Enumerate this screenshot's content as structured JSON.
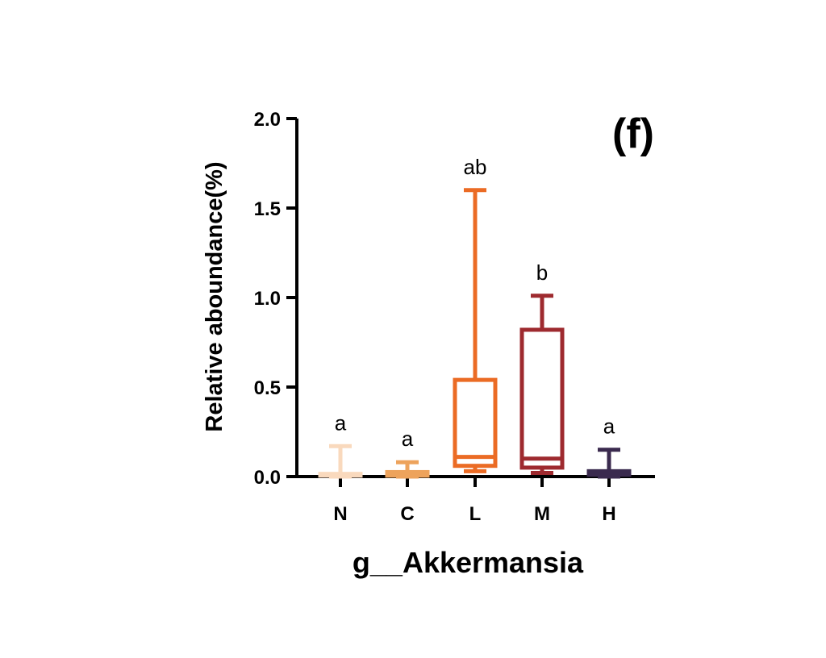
{
  "chart_data": {
    "type": "box",
    "panel_label": "(f)",
    "xlabel": "g__Akkermansia",
    "ylabel": "Relative aboundance(%)",
    "ylim": [
      0,
      2.0
    ],
    "yticks": [
      "0.0",
      "0.5",
      "1.0",
      "1.5",
      "2.0"
    ],
    "ytick_values": [
      0,
      0.5,
      1.0,
      1.5,
      2.0
    ],
    "grid": false,
    "categories": [
      "N",
      "C",
      "L",
      "M",
      "H"
    ],
    "boxes": [
      {
        "category": "N",
        "min": 0.0,
        "q1": 0.005,
        "median": 0.01,
        "q3": 0.015,
        "max": 0.17,
        "significance": "a",
        "color": "#f9d9bd"
      },
      {
        "category": "C",
        "min": 0.0,
        "q1": 0.005,
        "median": 0.015,
        "q3": 0.025,
        "max": 0.08,
        "significance": "a",
        "color": "#eda35c"
      },
      {
        "category": "L",
        "min": 0.03,
        "q1": 0.06,
        "median": 0.11,
        "q3": 0.54,
        "max": 1.6,
        "significance": "ab",
        "color": "#eb6b24"
      },
      {
        "category": "M",
        "min": 0.02,
        "q1": 0.05,
        "median": 0.1,
        "q3": 0.82,
        "max": 1.01,
        "significance": "b",
        "color": "#9e2a2f"
      },
      {
        "category": "H",
        "min": 0.0,
        "q1": 0.01,
        "median": 0.02,
        "q3": 0.03,
        "max": 0.15,
        "significance": "a",
        "color": "#3a2a4e"
      }
    ]
  }
}
